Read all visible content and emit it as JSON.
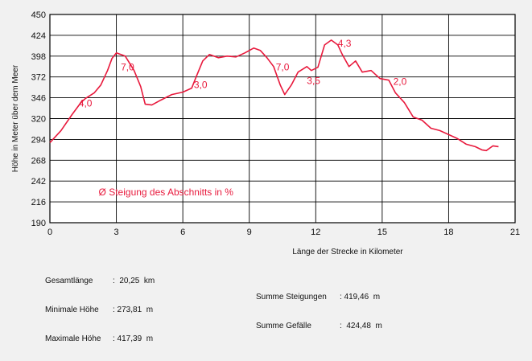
{
  "chart_data": {
    "type": "line",
    "title": "",
    "xlabel": "Länge der Strecke in Kilometer",
    "ylabel": "Höhe in Meter über dem Meer",
    "xlim": [
      0,
      21
    ],
    "ylim": [
      190,
      450
    ],
    "x_ticks": [
      "0",
      "3",
      "6",
      "9",
      "12",
      "15",
      "18",
      "21"
    ],
    "y_ticks": [
      "190",
      "216",
      "242",
      "268",
      "294",
      "320",
      "346",
      "372",
      "398",
      "424",
      "450"
    ],
    "grid": true,
    "line_color": "#e8193c",
    "series": [
      {
        "values": [
          [
            0,
            290
          ],
          [
            0.5,
            305
          ],
          [
            1.0,
            325
          ],
          [
            1.4,
            340
          ],
          [
            1.6,
            345
          ],
          [
            2.0,
            352
          ],
          [
            2.3,
            362
          ],
          [
            2.6,
            380
          ],
          [
            2.8,
            395
          ],
          [
            3.0,
            402
          ],
          [
            3.4,
            398
          ],
          [
            3.8,
            380
          ],
          [
            4.1,
            360
          ],
          [
            4.3,
            338
          ],
          [
            4.6,
            337
          ],
          [
            5.0,
            343
          ],
          [
            5.5,
            350
          ],
          [
            6.0,
            353
          ],
          [
            6.4,
            358
          ],
          [
            6.6,
            372
          ],
          [
            6.9,
            392
          ],
          [
            7.2,
            400
          ],
          [
            7.6,
            396
          ],
          [
            8.0,
            398
          ],
          [
            8.4,
            397
          ],
          [
            8.8,
            402
          ],
          [
            9.2,
            408
          ],
          [
            9.5,
            405
          ],
          [
            9.8,
            396
          ],
          [
            10.1,
            385
          ],
          [
            10.4,
            362
          ],
          [
            10.6,
            350
          ],
          [
            10.9,
            362
          ],
          [
            11.2,
            378
          ],
          [
            11.6,
            385
          ],
          [
            11.8,
            380
          ],
          [
            12.1,
            384
          ],
          [
            12.4,
            412
          ],
          [
            12.7,
            418
          ],
          [
            13.0,
            412
          ],
          [
            13.2,
            400
          ],
          [
            13.5,
            385
          ],
          [
            13.8,
            392
          ],
          [
            14.1,
            378
          ],
          [
            14.5,
            380
          ],
          [
            14.9,
            370
          ],
          [
            15.3,
            368
          ],
          [
            15.6,
            352
          ],
          [
            16.0,
            340
          ],
          [
            16.4,
            322
          ],
          [
            16.8,
            318
          ],
          [
            17.2,
            308
          ],
          [
            17.6,
            305
          ],
          [
            18.0,
            300
          ],
          [
            18.4,
            295
          ],
          [
            18.8,
            288
          ],
          [
            19.2,
            285
          ],
          [
            19.5,
            281
          ],
          [
            19.7,
            280
          ],
          [
            20.0,
            286
          ],
          [
            20.25,
            285
          ]
        ]
      }
    ],
    "annotations": [
      {
        "text": "4,0",
        "x": 1.3,
        "y": 335
      },
      {
        "text": "7,0",
        "x": 3.2,
        "y": 380
      },
      {
        "text": "3,0",
        "x": 6.5,
        "y": 358
      },
      {
        "text": "7,0",
        "x": 10.2,
        "y": 380
      },
      {
        "text": "3,5",
        "x": 11.6,
        "y": 363
      },
      {
        "text": "4,3",
        "x": 13.0,
        "y": 410
      },
      {
        "text": "2,0",
        "x": 15.5,
        "y": 362
      },
      {
        "text": "Ø Steigung des Abschnitts in %",
        "x": 2.2,
        "y": 224
      }
    ]
  },
  "stats": {
    "left": [
      {
        "label": "Gesamtlänge",
        "value": ":  20,25  km"
      },
      {
        "label": "Minimale Höhe",
        "value": ": 273,81  m"
      },
      {
        "label": "Maximale Höhe",
        "value": ": 417,39  m"
      }
    ],
    "right": [
      {
        "label": "Summe Steigungen",
        "value": ": 419,46  m"
      },
      {
        "label": "Summe Gefälle",
        "value": ":  424,48  m"
      }
    ]
  }
}
